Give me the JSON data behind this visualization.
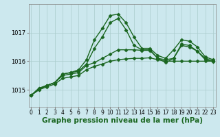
{
  "title": "Graphe pression niveau de la mer (hPa)",
  "background_color": "#cce8ee",
  "grid_color": "#aacccc",
  "line_color": "#1a6620",
  "x_labels": [
    "0",
    "1",
    "2",
    "3",
    "4",
    "5",
    "6",
    "7",
    "8",
    "9",
    "10",
    "11",
    "12",
    "13",
    "14",
    "15",
    "16",
    "17",
    "18",
    "19",
    "20",
    "21",
    "22",
    "23"
  ],
  "yticks": [
    1015,
    1016,
    1017
  ],
  "ylim": [
    1014.4,
    1018.0
  ],
  "xlim": [
    -0.3,
    23.3
  ],
  "series": [
    [
      1014.8,
      1015.0,
      1015.15,
      1015.25,
      1015.55,
      1015.6,
      1015.7,
      1016.05,
      1016.75,
      1017.15,
      1017.6,
      1017.65,
      1017.35,
      1016.85,
      1016.45,
      1016.45,
      1016.2,
      1016.1,
      1016.4,
      1016.75,
      1016.7,
      1016.5,
      1016.15,
      1016.05
    ],
    [
      1014.8,
      1015.05,
      1015.15,
      1015.25,
      1015.55,
      1015.6,
      1015.65,
      1015.9,
      1016.45,
      1016.85,
      1017.35,
      1017.5,
      1017.1,
      1016.55,
      1016.4,
      1016.4,
      1016.1,
      1015.95,
      1016.1,
      1016.6,
      1016.55,
      1016.35,
      1016.1,
      1016.0
    ],
    [
      1014.8,
      1015.05,
      1015.15,
      1015.25,
      1015.5,
      1015.55,
      1015.6,
      1015.85,
      1015.95,
      1016.1,
      1016.25,
      1016.4,
      1016.4,
      1016.4,
      1016.38,
      1016.38,
      1016.1,
      1016.05,
      1016.1,
      1016.55,
      1016.5,
      1016.35,
      1016.05,
      1015.98
    ],
    [
      1014.8,
      1015.0,
      1015.1,
      1015.2,
      1015.4,
      1015.45,
      1015.5,
      1015.7,
      1015.82,
      1015.9,
      1016.0,
      1016.05,
      1016.08,
      1016.1,
      1016.1,
      1016.12,
      1016.05,
      1016.0,
      1016.0,
      1016.0,
      1016.0,
      1016.0,
      1016.0,
      1016.0
    ]
  ],
  "marker": "D",
  "markersize": 2.5,
  "linewidth": 1.0,
  "title_fontsize": 7.5,
  "tick_fontsize": 5.5
}
